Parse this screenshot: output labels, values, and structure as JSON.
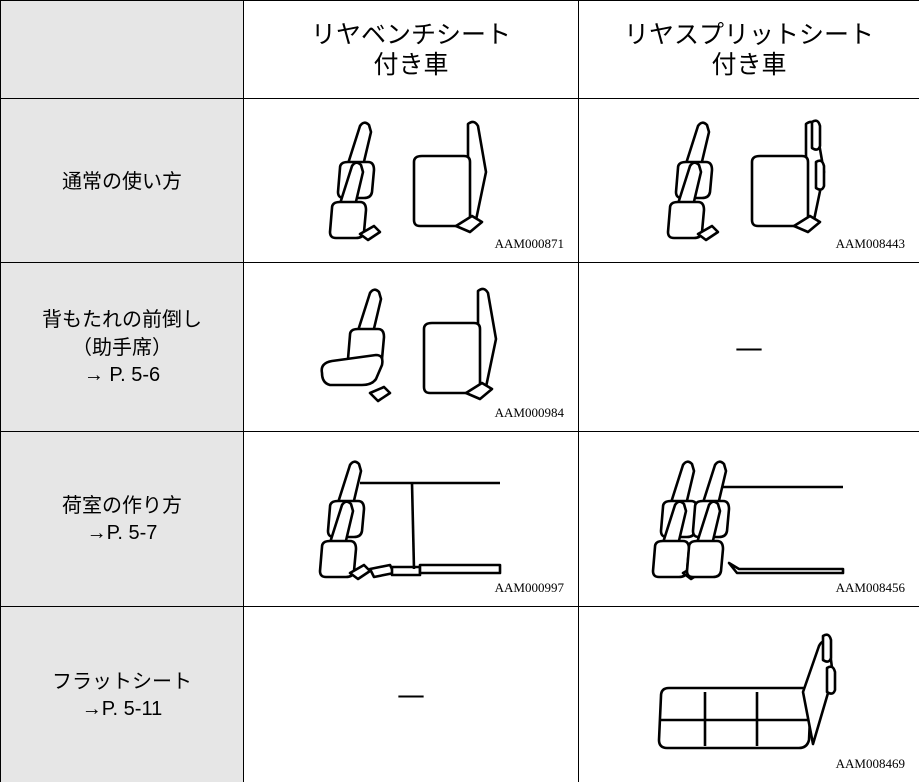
{
  "table": {
    "header": [
      [
        "リヤベンチシート",
        "付き車"
      ],
      [
        "リヤスプリットシート",
        "付き車"
      ]
    ],
    "rows": [
      {
        "label": [
          "通常の使い方"
        ],
        "cells": [
          {
            "code": "AAM000871"
          },
          {
            "code": "AAM008443"
          }
        ]
      },
      {
        "label": [
          "背もたれの前倒し",
          "（助手席）",
          "→ P. 5-6"
        ],
        "cells": [
          {
            "code": "AAM000984"
          },
          {
            "text": "—"
          }
        ]
      },
      {
        "label": [
          "荷室の作り方",
          "→P. 5-7"
        ],
        "cells": [
          {
            "code": "AAM000997"
          },
          {
            "code": "AAM008456"
          }
        ]
      },
      {
        "label": [
          "フラットシート",
          "→P. 5-11"
        ],
        "cells": [
          {
            "text": "—"
          },
          {
            "code": "AAM008469"
          }
        ]
      }
    ]
  }
}
